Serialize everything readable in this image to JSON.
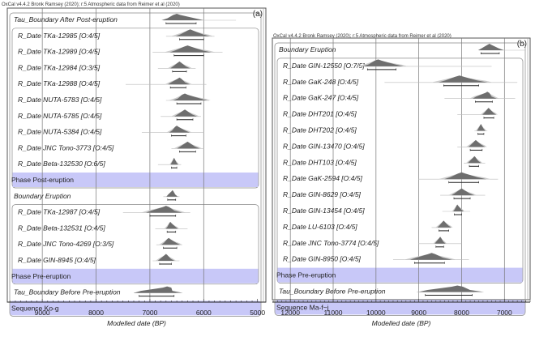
{
  "chart_data": [
    {
      "type": "oxcal-multiplot",
      "panel_tag": "(a)",
      "header": "OxCal v4.4.2 Bronk Ramsey (2020); r:5 Atmospheric data from Reimer et al (2020)",
      "xlabel": "Modelled date (BP)",
      "xlim": [
        9650,
        4980
      ],
      "ticks": [
        9000,
        8000,
        7000,
        6000,
        5000
      ],
      "grid_lines": [
        9000,
        8000,
        7000,
        6000
      ],
      "rows": [
        {
          "label": "Tau_Boundary After Post-eruption",
          "kind": "boundary",
          "peak": 6500,
          "lo": 6700,
          "hi": 6140,
          "spread_lo": 6750,
          "spread_hi": 5400
        },
        {
          "label": "R_Date TKa-12985 [O:4/5]",
          "kind": "date",
          "peak": 6250,
          "lo": 6450,
          "hi": 6000,
          "spread_lo": 6700,
          "spread_hi": 5800
        },
        {
          "label": "R_Date TKa-12989 [O:4/5]",
          "kind": "date",
          "peak": 6300,
          "lo": 6550,
          "hi": 6000,
          "spread_lo": 6950,
          "spread_hi": 5650
        },
        {
          "label": "R_Date TKa-12984 [O:3/5]",
          "kind": "date",
          "peak": 6450,
          "lo": 6580,
          "hi": 6320,
          "spread_lo": 6850,
          "spread_hi": 6150
        },
        {
          "label": "R_Date TKa-12988 [O:4/5]",
          "kind": "date",
          "peak": 6450,
          "lo": 6620,
          "hi": 6330,
          "spread_lo": 7450,
          "spread_hi": 5950
        },
        {
          "label": "R_Date NUTA-5783 [O:4/5]",
          "kind": "date",
          "peak": 6350,
          "lo": 6500,
          "hi": 6050,
          "spread_lo": 6700,
          "spread_hi": 5900
        },
        {
          "label": "R_Date NUTA-5785 [O:4/5]",
          "kind": "date",
          "peak": 6350,
          "lo": 6500,
          "hi": 6200,
          "spread_lo": 6800,
          "spread_hi": 6050
        },
        {
          "label": "R_Date NUTA-5384 [O:4/5]",
          "kind": "date",
          "peak": 6500,
          "lo": 6600,
          "hi": 6330,
          "spread_lo": 7150,
          "spread_hi": 6000
        },
        {
          "label": "R_Date JNC Tono-3773 [O:4/5]",
          "kind": "date",
          "peak": 6300,
          "lo": 6450,
          "hi": 6150,
          "spread_lo": 6600,
          "spread_hi": 6000
        },
        {
          "label": "R_Date Beta-132530 [O:6/5]",
          "kind": "date",
          "peak": 6550,
          "lo": 6600,
          "hi": 6500,
          "spread_lo": 6850,
          "spread_hi": 6420
        },
        {
          "label": "Phase Post-eruption",
          "kind": "phase"
        },
        {
          "label": "Boundary Eruption",
          "kind": "boundary",
          "peak": 6580,
          "lo": 6670,
          "hi": 6520,
          "spread_lo": 6750,
          "spread_hi": 6450
        },
        {
          "label": "R_Date TKa-12987 [O:4/5]",
          "kind": "date",
          "peak": 6700,
          "lo": 7000,
          "hi": 6520,
          "spread_lo": 7500,
          "spread_hi": 6250
        },
        {
          "label": "R_Date Beta-132531 [O:4/5]",
          "kind": "date",
          "peak": 6620,
          "lo": 6680,
          "hi": 6520,
          "spread_lo": 6900,
          "spread_hi": 6300
        },
        {
          "label": "R_Date JNC Tono-4269 [O:3/5]",
          "kind": "date",
          "peak": 6650,
          "lo": 6750,
          "hi": 6500,
          "spread_lo": 6880,
          "spread_hi": 6400
        },
        {
          "label": "R_Date GIN-8945 [O:4/5]",
          "kind": "date",
          "peak": 6700,
          "lo": 6820,
          "hi": 6600,
          "spread_lo": 6950,
          "spread_hi": 6450
        },
        {
          "label": "Phase Pre-eruption",
          "kind": "phase"
        },
        {
          "label": "Tau_Boundary Before Pre-eruption",
          "kind": "boundary",
          "peak": 6680,
          "lo": 7200,
          "hi": 6550,
          "spread_lo": 7300,
          "spread_hi": 6520
        },
        {
          "label": "Sequence Ko-g",
          "kind": "sequence"
        }
      ]
    },
    {
      "type": "oxcal-multiplot",
      "panel_tag": "(b)",
      "header": "OxCal v4.4.2 Bronk Ramsey (2020); r:5 Atmospheric data from Reimer et al (2020)",
      "xlabel": "Modelled date (BP)",
      "xlim": [
        12420,
        6400
      ],
      "ticks": [
        12000,
        11000,
        10000,
        9000,
        8000,
        7000
      ],
      "grid_lines": [
        12000,
        11000,
        10000,
        9000,
        8000,
        7000
      ],
      "rows": [
        {
          "label": "Boundary Eruption",
          "kind": "boundary",
          "peak": 7350,
          "lo": 7550,
          "hi": 7120,
          "spread_lo": 7600,
          "spread_hi": 6500
        },
        {
          "label": "R_Date GIN-12550 [O:7/5]",
          "kind": "date",
          "peak": 9950,
          "lo": 10200,
          "hi": 9530,
          "spread_lo": 10250,
          "spread_hi": 7300
        },
        {
          "label": "R_Date GaK-248 [O:4/5]",
          "kind": "date",
          "peak": 8050,
          "lo": 8420,
          "hi": 7600,
          "spread_lo": 9800,
          "spread_hi": 6700
        },
        {
          "label": "R_Date GaK-247 [O:4/5]",
          "kind": "date",
          "peak": 7400,
          "lo": 7680,
          "hi": 7280,
          "spread_lo": 8400,
          "spread_hi": 6750
        },
        {
          "label": "R_Date DHT201 [O:4/5]",
          "kind": "date",
          "peak": 7370,
          "lo": 7480,
          "hi": 7250,
          "spread_lo": 8100,
          "spread_hi": 7350
        },
        {
          "label": "R_Date DHT202 [O:4/5]",
          "kind": "date",
          "peak": 7550,
          "lo": 7620,
          "hi": 7480,
          "spread_lo": 7700,
          "spread_hi": 7400
        },
        {
          "label": "R_Date GIN-13470 [O:4/5]",
          "kind": "date",
          "peak": 7670,
          "lo": 7800,
          "hi": 7520,
          "spread_lo": 8100,
          "spread_hi": 7500
        },
        {
          "label": "R_Date DHT103 [O:4/5]",
          "kind": "date",
          "peak": 7700,
          "lo": 7820,
          "hi": 7600,
          "spread_lo": 7950,
          "spread_hi": 7450
        },
        {
          "label": "R_Date GaK-2594 [O:4/5]",
          "kind": "date",
          "peak": 8000,
          "lo": 8300,
          "hi": 7600,
          "spread_lo": 9000,
          "spread_hi": 7150
        },
        {
          "label": "R_Date GIN-8629 [O:4/5]",
          "kind": "date",
          "peak": 8000,
          "lo": 8180,
          "hi": 7800,
          "spread_lo": 8500,
          "spread_hi": 7450
        },
        {
          "label": "R_Date GIN-13454 [O:4/5]",
          "kind": "date",
          "peak": 8100,
          "lo": 8170,
          "hi": 8000,
          "spread_lo": 8450,
          "spread_hi": 7800
        },
        {
          "label": "R_Date LU-6103 [O:4/5]",
          "kind": "date",
          "peak": 8420,
          "lo": 8530,
          "hi": 8300,
          "spread_lo": 8700,
          "spread_hi": 8250
        },
        {
          "label": "R_Date JNC Tono-3774 [O:4/5]",
          "kind": "date",
          "peak": 8500,
          "lo": 8600,
          "hi": 8420,
          "spread_lo": 9000,
          "spread_hi": 8000
        },
        {
          "label": "R_Date GIN-8950 [O:4/5]",
          "kind": "date",
          "peak": 8700,
          "lo": 9100,
          "hi": 8400,
          "spread_lo": 9600,
          "spread_hi": 7830
        },
        {
          "label": "Phase Pre-eruption",
          "kind": "phase"
        },
        {
          "label": "Tau_Boundary Before Pre-eruption",
          "kind": "boundary",
          "peak": 8100,
          "lo": 8850,
          "hi": 7750,
          "spread_lo": 9050,
          "spread_hi": 7700
        },
        {
          "label": "Sequence Ma-f~j",
          "kind": "sequence"
        }
      ]
    }
  ],
  "colors": {
    "phase_band": "#c8c8f8",
    "dist_dark": "#6e6e6e",
    "dist_light": "#cccccc",
    "grid": "#777777",
    "frame": "#555555"
  }
}
